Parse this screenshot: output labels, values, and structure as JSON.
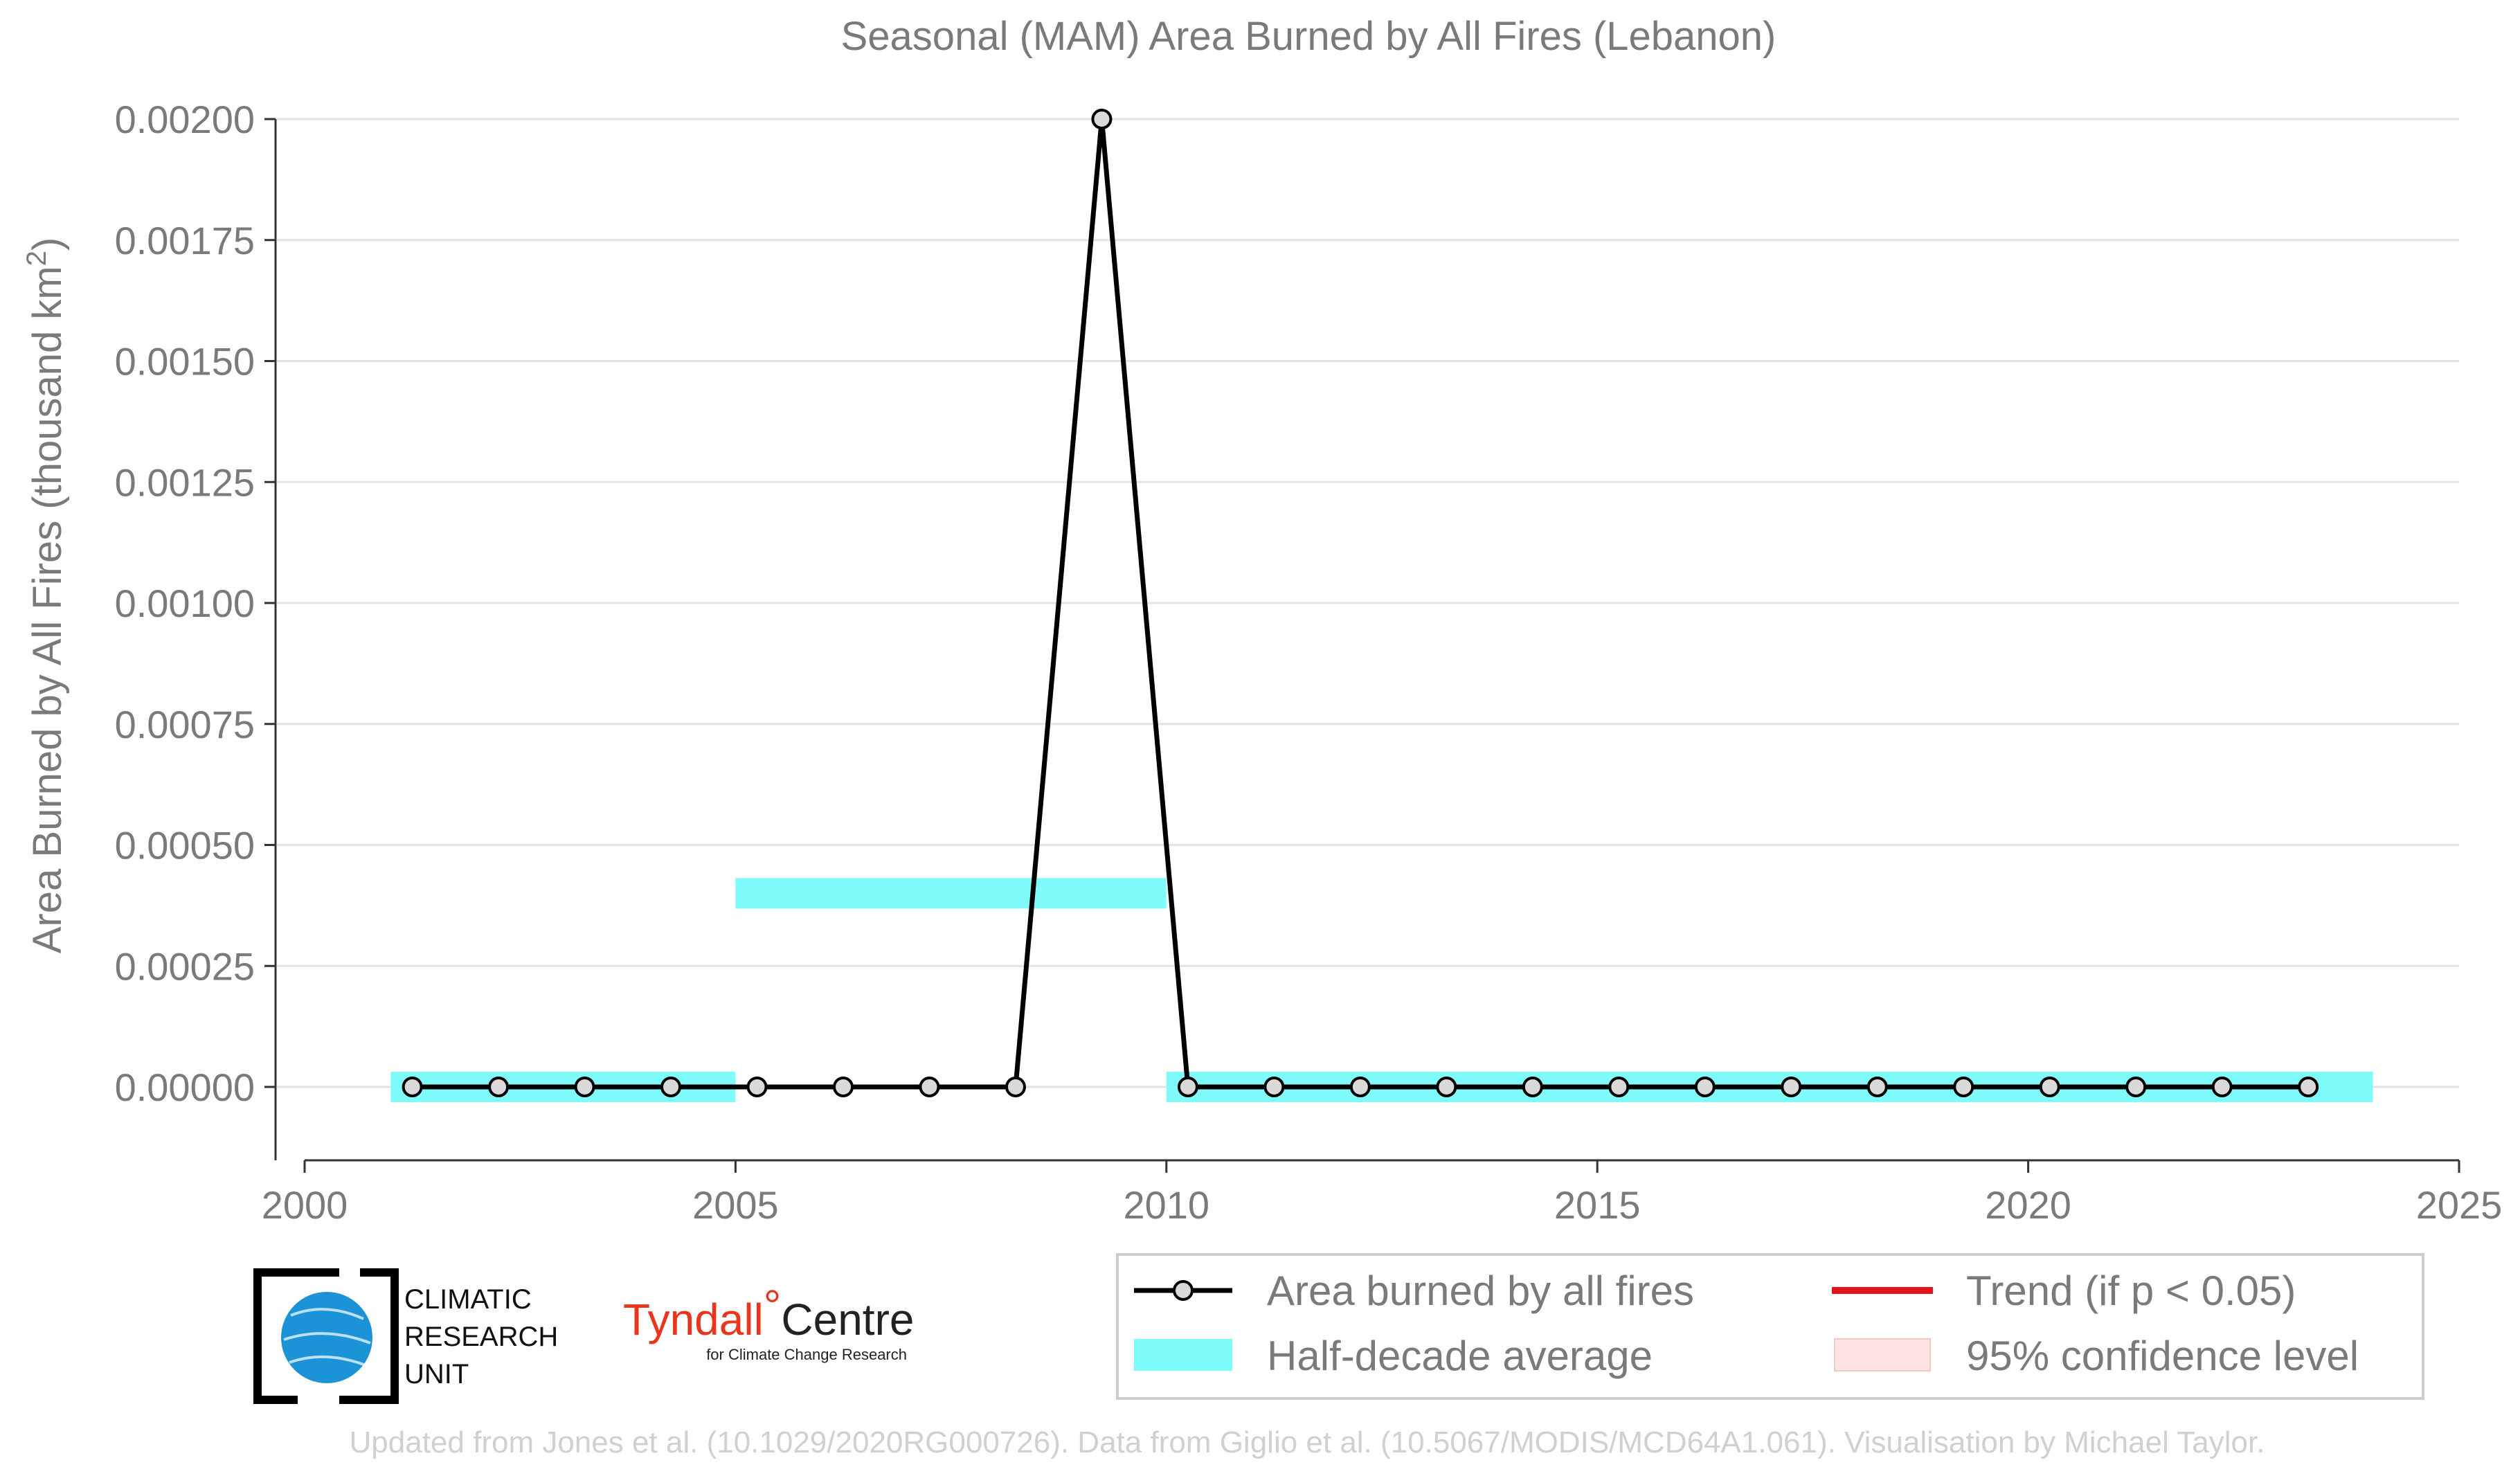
{
  "chart_data": {
    "type": "line",
    "title": "Seasonal (MAM) Area Burned by All Fires (Lebanon)",
    "ylabel": "Area Burned by All Fires (thousand km",
    "ylabel_sup": "2",
    "ylabel_end": ")",
    "xlim": [
      2000,
      2025
    ],
    "ylim": [
      -0.00015,
      0.002
    ],
    "x_ticks": [
      2000,
      2005,
      2010,
      2015,
      2020,
      2025
    ],
    "x_tick_labels": [
      "2000",
      "2005",
      "2010",
      "2015",
      "2020",
      "2025"
    ],
    "y_ticks": [
      0,
      0.00025,
      0.0005,
      0.00075,
      0.001,
      0.00125,
      0.0015,
      0.00175,
      0.002
    ],
    "y_tick_labels": [
      "0.00000",
      "0.00025",
      "0.00050",
      "0.00075",
      "0.00100",
      "0.00125",
      "0.00150",
      "0.00175",
      "0.00200"
    ],
    "grid": true,
    "series": [
      {
        "name": "Area burned by all fires",
        "color": "#000000",
        "x": [
          2001.25,
          2002.25,
          2003.25,
          2004.25,
          2005.25,
          2006.25,
          2007.25,
          2008.25,
          2009.25,
          2010.25,
          2011.25,
          2012.25,
          2013.25,
          2014.25,
          2015.25,
          2016.25,
          2017.25,
          2018.25,
          2019.25,
          2020.25,
          2021.25,
          2022.25,
          2023.25
        ],
        "values": [
          0,
          0,
          0,
          0,
          0,
          0,
          0,
          0,
          0.002,
          0,
          0,
          0,
          0,
          0,
          0,
          0,
          0,
          0,
          0,
          0,
          0,
          0,
          0
        ]
      }
    ],
    "half_decade_average": {
      "name": "Half-decade average",
      "color": "#7ffbfb",
      "segments": [
        {
          "x0": 2001,
          "x1": 2005,
          "value": 0
        },
        {
          "x0": 2005,
          "x1": 2010,
          "value": 0.0004
        },
        {
          "x0": 2010,
          "x1": 2024,
          "value": 0
        }
      ]
    },
    "legend": {
      "position": "bottom-right",
      "entries": [
        {
          "label": "Area burned by all fires",
          "kind": "line-marker",
          "color": "#000000"
        },
        {
          "label": "Trend (if p < 0.05)",
          "kind": "line",
          "color": "#e8141b"
        },
        {
          "label": "Half-decade average",
          "kind": "band",
          "color": "#7ffbfb"
        },
        {
          "label": "95% confidence level",
          "kind": "band",
          "color": "#fde2e2"
        }
      ]
    }
  },
  "logos": {
    "cru": {
      "icon": "globe-icon",
      "lines": [
        "CLIMATIC",
        "RESEARCH",
        "UNIT"
      ]
    },
    "tyndall": {
      "main": "Tyndall",
      "degree": "°",
      "centre": "Centre",
      "sub": "for Climate Change Research"
    }
  },
  "footer": "Updated from Jones et al. (10.1029/2020RG000726). Data from Giglio et al. (10.5067/MODIS/MCD64A1.061). Visualisation by Michael Taylor."
}
